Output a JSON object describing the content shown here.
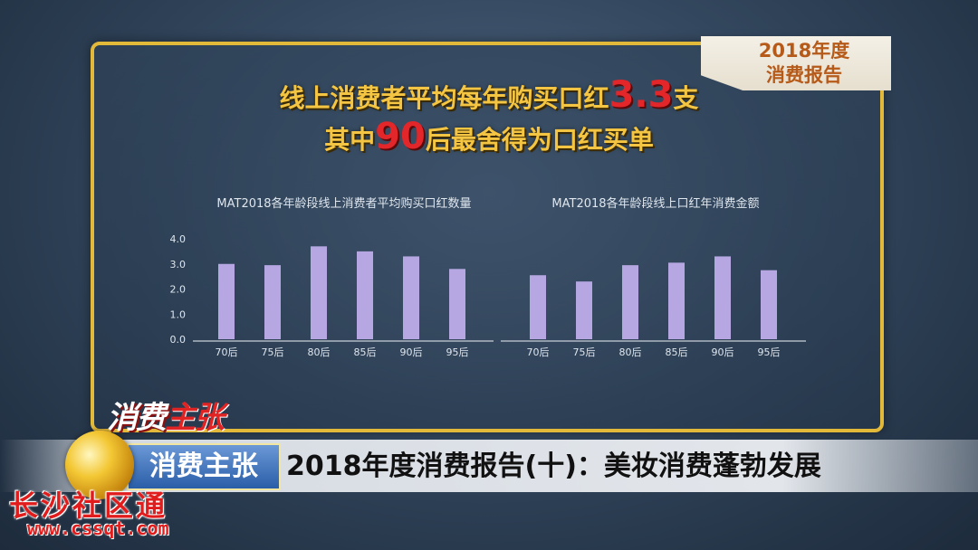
{
  "corner_tag": {
    "line1": "2018年度",
    "line2": "消费报告"
  },
  "headline": {
    "line1_prefix": "线上消费者平均每年购买口红",
    "line1_number": "3.3",
    "line1_suffix": "支",
    "line2_prefix": "其中",
    "line2_number": "90",
    "line2_suffix": "后最舍得为口红买单"
  },
  "banner": {
    "logo_a": "消费",
    "logo_b": "主张",
    "tag": "消费主张",
    "title": "2018年度消费报告(十)：美妆消费蓬勃发展"
  },
  "watermark": {
    "name": "长沙社区通",
    "url": "www.cssqt.com"
  },
  "colors": {
    "bar": "#b6a7e2",
    "gold": "#e3b93a",
    "accent_red": "#e3262a"
  },
  "chart_data": [
    {
      "type": "bar",
      "title": "MAT2018各年龄段线上消费者平均购买口红数量",
      "categories": [
        "70后",
        "75后",
        "80后",
        "85后",
        "90后",
        "95后"
      ],
      "values": [
        3.0,
        2.95,
        3.7,
        3.5,
        3.3,
        2.8
      ],
      "ylim": [
        0,
        4.0
      ],
      "yticks": [
        "0.0",
        "1.0",
        "2.0",
        "3.0",
        "4.0"
      ],
      "grid": false
    },
    {
      "type": "bar",
      "title": "MAT2018各年龄段线上口红年消费金额",
      "categories": [
        "70后",
        "75后",
        "80后",
        "85后",
        "90后",
        "95后"
      ],
      "values": [
        2.55,
        2.3,
        2.95,
        3.05,
        3.3,
        2.75
      ],
      "ylim": [
        0,
        4.0
      ],
      "grid": false
    }
  ]
}
